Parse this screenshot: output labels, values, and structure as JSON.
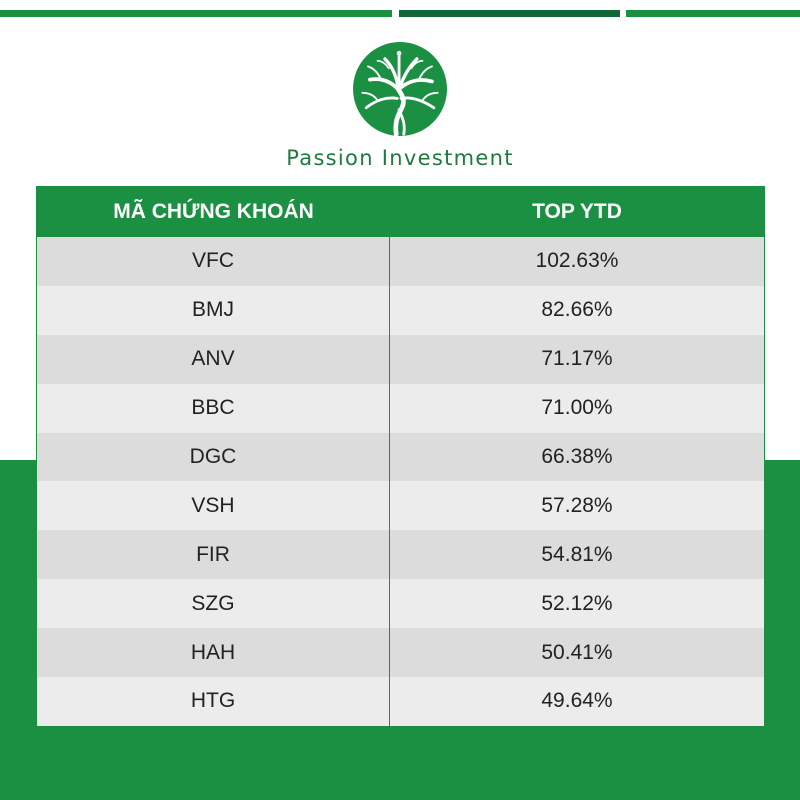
{
  "brand": {
    "name": "Passion Investment",
    "logo_icon": "tree-icon",
    "color_primary": "#1b8f42",
    "color_dark": "#11663a"
  },
  "table": {
    "headers": {
      "ticker": "MÃ CHỨNG KHOÁN",
      "ytd": "TOP YTD"
    },
    "rows": [
      {
        "ticker": "VFC",
        "ytd": "102.63%"
      },
      {
        "ticker": "BMJ",
        "ytd": "82.66%"
      },
      {
        "ticker": "ANV",
        "ytd": "71.17%"
      },
      {
        "ticker": "BBC",
        "ytd": "71.00%"
      },
      {
        "ticker": "DGC",
        "ytd": "66.38%"
      },
      {
        "ticker": "VSH",
        "ytd": "57.28%"
      },
      {
        "ticker": "FIR",
        "ytd": "54.81%"
      },
      {
        "ticker": "SZG",
        "ytd": "52.12%"
      },
      {
        "ticker": "HAH",
        "ytd": "50.41%"
      },
      {
        "ticker": "HTG",
        "ytd": "49.64%"
      }
    ]
  }
}
